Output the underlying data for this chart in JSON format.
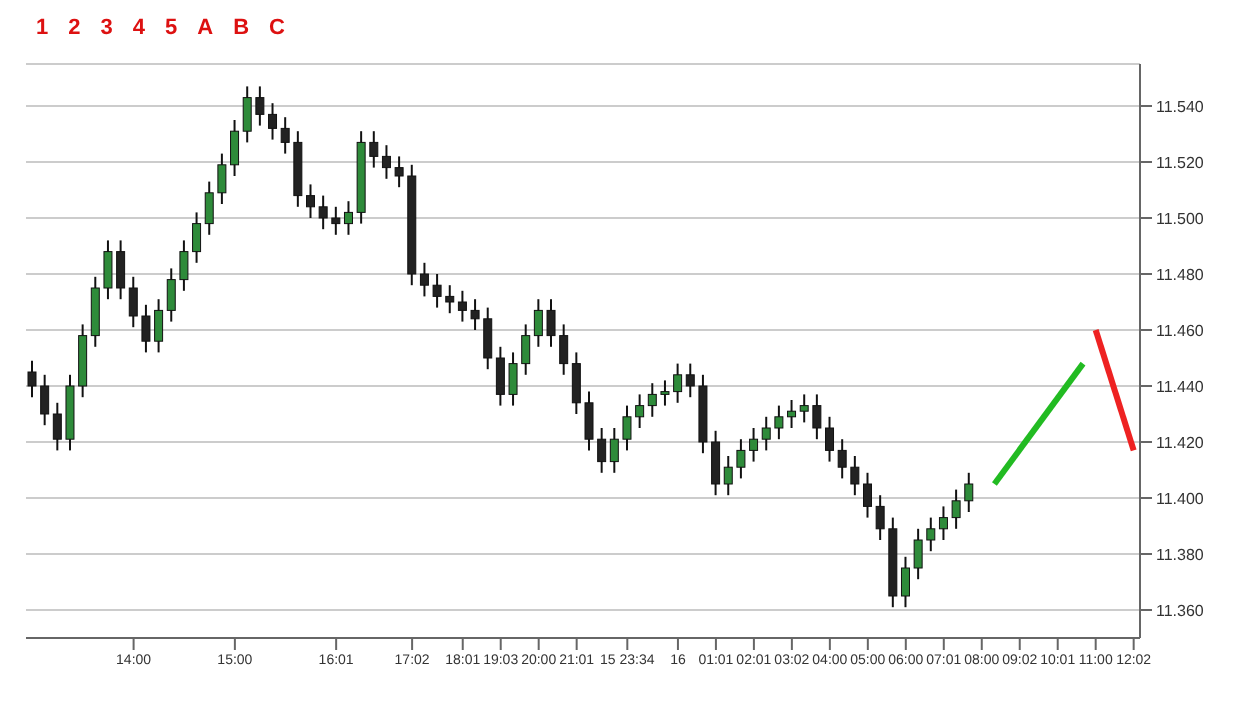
{
  "chart_data": {
    "type": "candlestick",
    "categories": [
      null,
      null,
      null,
      null,
      null,
      null,
      null,
      null,
      "14:00",
      null,
      null,
      null,
      null,
      null,
      null,
      null,
      "15:00",
      null,
      null,
      null,
      null,
      null,
      null,
      null,
      "16:01",
      null,
      null,
      null,
      null,
      null,
      "17:02",
      null,
      null,
      null,
      "18:01",
      null,
      null,
      "19:03",
      null,
      null,
      "20:00",
      null,
      null,
      "21:01",
      null,
      null,
      null,
      "15 23:34",
      null,
      null,
      null,
      "16",
      null,
      null,
      "01:01",
      null,
      null,
      "02:01",
      null,
      null,
      "03:02",
      null,
      null,
      "04:00",
      null,
      null,
      "05:00",
      null,
      null,
      "06:00",
      null,
      null,
      "07:01",
      null,
      null,
      "08:00",
      null,
      null,
      "09:02",
      null,
      null,
      "10:01",
      null,
      null,
      "11:00",
      null,
      null,
      "12:02"
    ],
    "ohlc": [
      [
        11.445,
        11.449,
        11.436,
        11.44
      ],
      [
        11.44,
        11.444,
        11.426,
        11.43
      ],
      [
        11.43,
        11.434,
        11.417,
        11.421
      ],
      [
        11.421,
        11.444,
        11.417,
        11.44
      ],
      [
        11.44,
        11.462,
        11.436,
        11.458
      ],
      [
        11.458,
        11.479,
        11.454,
        11.475
      ],
      [
        11.475,
        11.492,
        11.471,
        11.488
      ],
      [
        11.488,
        11.492,
        11.471,
        11.475
      ],
      [
        11.475,
        11.479,
        11.461,
        11.465
      ],
      [
        11.465,
        11.469,
        11.452,
        11.456
      ],
      [
        11.456,
        11.471,
        11.452,
        11.467
      ],
      [
        11.467,
        11.482,
        11.463,
        11.478
      ],
      [
        11.478,
        11.492,
        11.474,
        11.488
      ],
      [
        11.488,
        11.502,
        11.484,
        11.498
      ],
      [
        11.498,
        11.513,
        11.494,
        11.509
      ],
      [
        11.509,
        11.523,
        11.505,
        11.519
      ],
      [
        11.519,
        11.535,
        11.515,
        11.531
      ],
      [
        11.531,
        11.547,
        11.527,
        11.543
      ],
      [
        11.543,
        11.547,
        11.533,
        11.537
      ],
      [
        11.537,
        11.541,
        11.528,
        11.532
      ],
      [
        11.532,
        11.536,
        11.523,
        11.527
      ],
      [
        11.527,
        11.531,
        11.504,
        11.508
      ],
      [
        11.508,
        11.512,
        11.5,
        11.504
      ],
      [
        11.504,
        11.508,
        11.496,
        11.5
      ],
      [
        11.5,
        11.504,
        11.494,
        11.498
      ],
      [
        11.498,
        11.506,
        11.494,
        11.502
      ],
      [
        11.502,
        11.531,
        11.498,
        11.527
      ],
      [
        11.527,
        11.531,
        11.518,
        11.522
      ],
      [
        11.522,
        11.526,
        11.514,
        11.518
      ],
      [
        11.518,
        11.522,
        11.511,
        11.515
      ],
      [
        11.515,
        11.519,
        11.476,
        11.48
      ],
      [
        11.48,
        11.484,
        11.472,
        11.476
      ],
      [
        11.476,
        11.48,
        11.468,
        11.472
      ],
      [
        11.472,
        11.476,
        11.466,
        11.47
      ],
      [
        11.47,
        11.474,
        11.463,
        11.467
      ],
      [
        11.467,
        11.471,
        11.46,
        11.464
      ],
      [
        11.464,
        11.468,
        11.446,
        11.45
      ],
      [
        11.45,
        11.454,
        11.433,
        11.437
      ],
      [
        11.437,
        11.452,
        11.433,
        11.448
      ],
      [
        11.448,
        11.462,
        11.444,
        11.458
      ],
      [
        11.458,
        11.471,
        11.454,
        11.467
      ],
      [
        11.467,
        11.471,
        11.454,
        11.458
      ],
      [
        11.458,
        11.462,
        11.444,
        11.448
      ],
      [
        11.448,
        11.452,
        11.43,
        11.434
      ],
      [
        11.434,
        11.438,
        11.417,
        11.421
      ],
      [
        11.421,
        11.425,
        11.409,
        11.413
      ],
      [
        11.413,
        11.425,
        11.409,
        11.421
      ],
      [
        11.421,
        11.433,
        11.417,
        11.429
      ],
      [
        11.429,
        11.437,
        11.425,
        11.433
      ],
      [
        11.433,
        11.441,
        11.429,
        11.437
      ],
      [
        11.437,
        11.442,
        11.433,
        11.438
      ],
      [
        11.438,
        11.448,
        11.434,
        11.444
      ],
      [
        11.444,
        11.448,
        11.436,
        11.44
      ],
      [
        11.44,
        11.444,
        11.416,
        11.42
      ],
      [
        11.42,
        11.424,
        11.401,
        11.405
      ],
      [
        11.405,
        11.415,
        11.401,
        11.411
      ],
      [
        11.411,
        11.421,
        11.407,
        11.417
      ],
      [
        11.417,
        11.425,
        11.413,
        11.421
      ],
      [
        11.421,
        11.429,
        11.417,
        11.425
      ],
      [
        11.425,
        11.433,
        11.421,
        11.429
      ],
      [
        11.429,
        11.435,
        11.425,
        11.431
      ],
      [
        11.431,
        11.437,
        11.427,
        11.433
      ],
      [
        11.433,
        11.437,
        11.421,
        11.425
      ],
      [
        11.425,
        11.429,
        11.413,
        11.417
      ],
      [
        11.417,
        11.421,
        11.407,
        11.411
      ],
      [
        11.411,
        11.415,
        11.401,
        11.405
      ],
      [
        11.405,
        11.409,
        11.393,
        11.397
      ],
      [
        11.397,
        11.401,
        11.385,
        11.389
      ],
      [
        11.389,
        11.393,
        11.361,
        11.365
      ],
      [
        11.365,
        11.379,
        11.361,
        11.375
      ],
      [
        11.375,
        11.389,
        11.371,
        11.385
      ],
      [
        11.385,
        11.393,
        11.381,
        11.389
      ],
      [
        11.389,
        11.397,
        11.385,
        11.393
      ],
      [
        11.393,
        11.403,
        11.389,
        11.399
      ],
      [
        11.399,
        11.409,
        11.395,
        11.405
      ],
      null,
      null,
      null,
      null,
      null,
      null,
      null,
      null,
      null,
      null,
      null,
      null,
      null
    ],
    "series": [
      {
        "type": "line",
        "color": "#22bb22",
        "values": [
          null,
          null,
          null,
          null,
          null,
          null,
          null,
          null,
          null,
          null,
          null,
          null,
          null,
          null,
          null,
          null,
          null,
          null,
          null,
          null,
          null,
          null,
          null,
          null,
          null,
          null,
          null,
          null,
          null,
          null,
          null,
          null,
          null,
          null,
          null,
          null,
          null,
          null,
          null,
          null,
          null,
          null,
          null,
          null,
          null,
          null,
          null,
          null,
          null,
          null,
          null,
          null,
          null,
          null,
          null,
          null,
          null,
          null,
          null,
          null,
          null,
          null,
          null,
          null,
          null,
          null,
          null,
          null,
          null,
          null,
          null,
          null,
          null,
          null,
          null,
          null,
          11.405,
          null,
          null,
          null,
          null,
          null,
          null,
          11.448,
          null,
          null,
          null,
          null
        ]
      },
      {
        "type": "line",
        "color": "#ee2222",
        "values": [
          null,
          null,
          null,
          null,
          null,
          null,
          null,
          null,
          null,
          null,
          null,
          null,
          null,
          null,
          null,
          null,
          null,
          null,
          null,
          null,
          null,
          null,
          null,
          null,
          null,
          null,
          null,
          null,
          null,
          null,
          null,
          null,
          null,
          null,
          null,
          null,
          null,
          null,
          null,
          null,
          null,
          null,
          null,
          null,
          null,
          null,
          null,
          null,
          null,
          null,
          null,
          null,
          null,
          null,
          null,
          null,
          null,
          null,
          null,
          null,
          null,
          null,
          null,
          null,
          null,
          null,
          null,
          null,
          null,
          null,
          null,
          null,
          null,
          null,
          null,
          null,
          null,
          null,
          null,
          null,
          null,
          null,
          null,
          null,
          11.46,
          null,
          null,
          11.417
        ]
      }
    ],
    "ylim": [
      11.35,
      11.555
    ],
    "yticks": [
      {
        "value": 11.36,
        "label": "11.360"
      },
      {
        "value": 11.38,
        "label": "11.380"
      },
      {
        "value": 11.4,
        "label": "11.400"
      },
      {
        "value": 11.42,
        "label": "11.420"
      },
      {
        "value": 11.44,
        "label": "11.440"
      },
      {
        "value": 11.46,
        "label": "11.460"
      },
      {
        "value": 11.48,
        "label": "11.480"
      },
      {
        "value": 11.5,
        "label": "11.500"
      },
      {
        "value": 11.52,
        "label": "11.520"
      },
      {
        "value": 11.54,
        "label": "11.540"
      }
    ],
    "grid": "y",
    "annotations": [
      "1",
      "2",
      "3",
      "4",
      "5",
      "A",
      "B",
      "C"
    ]
  }
}
